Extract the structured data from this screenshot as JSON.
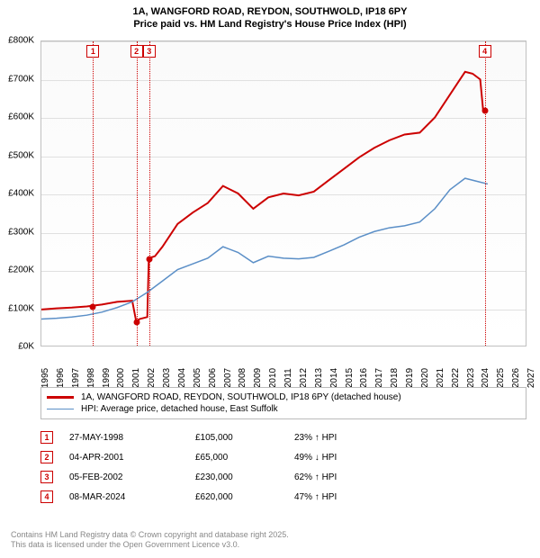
{
  "title": {
    "line1": "1A, WANGFORD ROAD, REYDON, SOUTHWOLD, IP18 6PY",
    "line2": "Price paid vs. HM Land Registry's House Price Index (HPI)"
  },
  "chart": {
    "type": "line",
    "background_color": "#ffffff",
    "grid_color": "#e0e0e0",
    "border_color": "#c0c0c0",
    "ylim": [
      0,
      800000
    ],
    "ytick_step": 100000,
    "y_labels": [
      "£0K",
      "£100K",
      "£200K",
      "£300K",
      "£400K",
      "£500K",
      "£600K",
      "£700K",
      "£800K"
    ],
    "xlim": [
      1995,
      2027
    ],
    "x_labels": [
      "1995",
      "1996",
      "1997",
      "1998",
      "1999",
      "2000",
      "2001",
      "2002",
      "2003",
      "2004",
      "2005",
      "2006",
      "2007",
      "2008",
      "2009",
      "2010",
      "2011",
      "2012",
      "2013",
      "2014",
      "2015",
      "2016",
      "2017",
      "2018",
      "2019",
      "2020",
      "2021",
      "2022",
      "2023",
      "2024",
      "2025",
      "2026",
      "2027"
    ],
    "series": [
      {
        "name": "price_paid",
        "color": "#cc0000",
        "line_width": 2,
        "points": [
          [
            1995,
            95000
          ],
          [
            1996,
            98000
          ],
          [
            1997,
            100000
          ],
          [
            1998,
            103000
          ],
          [
            1998.4,
            105000
          ],
          [
            1999,
            108000
          ],
          [
            2000,
            115000
          ],
          [
            2001,
            118000
          ],
          [
            2001.26,
            65000
          ],
          [
            2001.5,
            70000
          ],
          [
            2002,
            75000
          ],
          [
            2002.1,
            230000
          ],
          [
            2002.5,
            235000
          ],
          [
            2003,
            260000
          ],
          [
            2004,
            320000
          ],
          [
            2005,
            350000
          ],
          [
            2006,
            375000
          ],
          [
            2007,
            420000
          ],
          [
            2008,
            400000
          ],
          [
            2009,
            360000
          ],
          [
            2010,
            390000
          ],
          [
            2011,
            400000
          ],
          [
            2012,
            395000
          ],
          [
            2013,
            405000
          ],
          [
            2014,
            435000
          ],
          [
            2015,
            465000
          ],
          [
            2016,
            495000
          ],
          [
            2017,
            520000
          ],
          [
            2018,
            540000
          ],
          [
            2019,
            555000
          ],
          [
            2020,
            560000
          ],
          [
            2021,
            600000
          ],
          [
            2022,
            660000
          ],
          [
            2023,
            720000
          ],
          [
            2023.5,
            715000
          ],
          [
            2024,
            700000
          ],
          [
            2024.19,
            620000
          ],
          [
            2024.5,
            620000
          ]
        ]
      },
      {
        "name": "hpi",
        "color": "#5b8fc7",
        "line_width": 1.5,
        "points": [
          [
            1995,
            70000
          ],
          [
            1996,
            72000
          ],
          [
            1997,
            75000
          ],
          [
            1998,
            80000
          ],
          [
            1999,
            88000
          ],
          [
            2000,
            100000
          ],
          [
            2001,
            115000
          ],
          [
            2002,
            140000
          ],
          [
            2003,
            170000
          ],
          [
            2004,
            200000
          ],
          [
            2005,
            215000
          ],
          [
            2006,
            230000
          ],
          [
            2007,
            260000
          ],
          [
            2008,
            245000
          ],
          [
            2009,
            218000
          ],
          [
            2010,
            235000
          ],
          [
            2011,
            230000
          ],
          [
            2012,
            228000
          ],
          [
            2013,
            232000
          ],
          [
            2014,
            248000
          ],
          [
            2015,
            265000
          ],
          [
            2016,
            285000
          ],
          [
            2017,
            300000
          ],
          [
            2018,
            310000
          ],
          [
            2019,
            315000
          ],
          [
            2020,
            325000
          ],
          [
            2021,
            360000
          ],
          [
            2022,
            410000
          ],
          [
            2023,
            440000
          ],
          [
            2024,
            430000
          ],
          [
            2024.5,
            425000
          ]
        ]
      }
    ],
    "sale_markers": [
      {
        "n": "1",
        "year": 1998.4,
        "price": 105000
      },
      {
        "n": "2",
        "year": 2001.26,
        "price": 65000
      },
      {
        "n": "3",
        "year": 2002.1,
        "price": 230000
      },
      {
        "n": "4",
        "year": 2024.19,
        "price": 620000
      }
    ],
    "marker_box_color": "#cc0000",
    "marker_dot_color": "#cc0000"
  },
  "legend": {
    "items": [
      {
        "color": "#cc0000",
        "width": 3,
        "label": "1A, WANGFORD ROAD, REYDON, SOUTHWOLD, IP18 6PY (detached house)"
      },
      {
        "color": "#5b8fc7",
        "width": 1.5,
        "label": "HPI: Average price, detached house, East Suffolk"
      }
    ]
  },
  "events": [
    {
      "n": "1",
      "date": "27-MAY-1998",
      "price": "£105,000",
      "change": "23% ↑ HPI"
    },
    {
      "n": "2",
      "date": "04-APR-2001",
      "price": "£65,000",
      "change": "49% ↓ HPI"
    },
    {
      "n": "3",
      "date": "05-FEB-2002",
      "price": "£230,000",
      "change": "62% ↑ HPI"
    },
    {
      "n": "4",
      "date": "08-MAR-2024",
      "price": "£620,000",
      "change": "47% ↑ HPI"
    }
  ],
  "footer": {
    "line1": "Contains HM Land Registry data © Crown copyright and database right 2025.",
    "line2": "This data is licensed under the Open Government Licence v3.0."
  }
}
